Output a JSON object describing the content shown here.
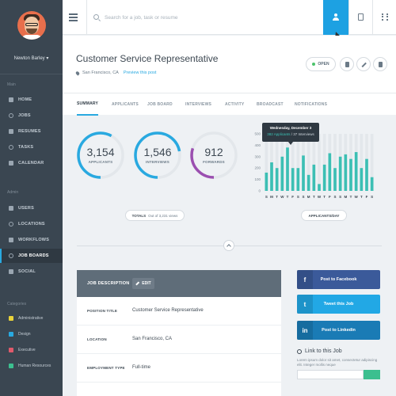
{
  "sidebar": {
    "user_name": "Newton Barley",
    "main_label": "Main",
    "main_items": [
      {
        "label": "HOME",
        "icon": "home-icon"
      },
      {
        "label": "JOBS",
        "icon": "briefcase-icon"
      },
      {
        "label": "RESUMES",
        "icon": "document-icon"
      },
      {
        "label": "TASKS",
        "icon": "checklist-icon"
      },
      {
        "label": "CALENDAR",
        "icon": "calendar-icon"
      }
    ],
    "admin_label": "Admin",
    "admin_items": [
      {
        "label": "USERS",
        "icon": "users-icon"
      },
      {
        "label": "LOCATIONS",
        "icon": "pin-icon"
      },
      {
        "label": "WORKFLOWS",
        "icon": "workflow-icon"
      },
      {
        "label": "JOB BOARDS",
        "icon": "board-icon"
      },
      {
        "label": "SOCIAL",
        "icon": "share-icon"
      }
    ],
    "categories_label": "Categories",
    "categories": [
      {
        "label": "Administrative",
        "color": "#e8d23a"
      },
      {
        "label": "Design",
        "color": "#29a9e0"
      },
      {
        "label": "Executive",
        "color": "#e05a6b"
      },
      {
        "label": "Human Resources",
        "color": "#3cbf8f"
      }
    ]
  },
  "topbar": {
    "search_placeholder": "Search for a job, task or resume"
  },
  "header": {
    "title": "Customer Service Representative",
    "location": "San Francisco, CA",
    "preview_link": "Preview this post",
    "status_label": "OPEN",
    "status_color": "#4cc36b"
  },
  "tabs": [
    "SUMMARY",
    "APPLICANTS",
    "JOB BOARD",
    "INTERVIEWS",
    "ACTIVITY",
    "BROADCAST",
    "NOTIFICATIONS"
  ],
  "stats": [
    {
      "value": "3,154",
      "label": "APPLICANTS",
      "color": "#29a9e0",
      "fraction": 0.58
    },
    {
      "value": "1,546",
      "label": "INTERVIEWS",
      "color": "#29a9e0",
      "fraction": 0.72
    },
    {
      "value": "912",
      "label": "FORWARDS",
      "color": "#9b4fb0",
      "fraction": 0.3
    }
  ],
  "totals": {
    "label": "TOTALS",
    "detail": "Out of 3,231 views"
  },
  "chart_label": "APPLICANTS/DAY",
  "chart_data": {
    "type": "bar",
    "categories": [
      "S",
      "M",
      "T",
      "W",
      "T",
      "F",
      "S",
      "S",
      "M",
      "T",
      "W",
      "T",
      "F",
      "S",
      "S",
      "M",
      "T",
      "W",
      "T",
      "F",
      "S"
    ],
    "series": [
      {
        "name": "Applicants",
        "values": [
          160,
          250,
          200,
          300,
          380,
          200,
          200,
          310,
          140,
          230,
          60,
          230,
          330,
          200,
          300,
          320,
          280,
          340,
          200,
          280,
          120
        ]
      }
    ],
    "ylim": [
      0,
      500
    ],
    "yticks": [
      0,
      100,
      200,
      300,
      400,
      500
    ],
    "tooltip": {
      "date": "Wednesday, December 3",
      "applicants": "382 Applicants",
      "interviews": "37 Interviews"
    },
    "colors": {
      "bar": "#3cbfb4",
      "background_bar": "#e3e7eb"
    }
  },
  "job_description": {
    "title": "JOB DESCRIPTION",
    "edit_label": "EDIT",
    "rows": [
      {
        "label": "POSITION TITLE",
        "value": "Customer Service Representative"
      },
      {
        "label": "LOCATION",
        "value": "San Francisco, CA"
      },
      {
        "label": "EMPLOYMENT TYPE",
        "value": "Full-time"
      }
    ]
  },
  "social": [
    {
      "label": "Post to Facebook",
      "color": "#3b5a9a",
      "icon": "facebook-icon",
      "glyph": "f"
    },
    {
      "label": "Tweet this Job",
      "color": "#22a8e5",
      "icon": "twitter-icon",
      "glyph": "t"
    },
    {
      "label": "Post to Linkedin",
      "color": "#1a7bb5",
      "icon": "linkedin-icon",
      "glyph": "in"
    }
  ],
  "link_job": {
    "title": "Link to this Job",
    "description": "Lorem ipsum dolor sit amet, consectetur adipiscing elit. Integer mollis neque"
  }
}
